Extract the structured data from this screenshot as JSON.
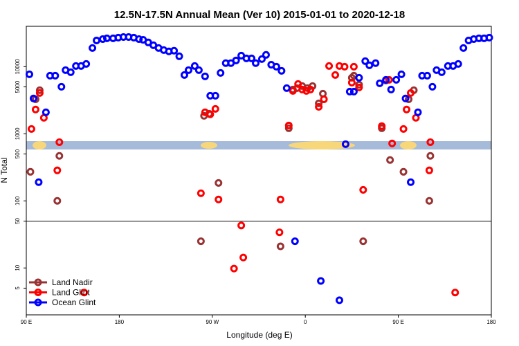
{
  "chart_data": {
    "type": "scatter",
    "title": "12.5N-17.5N Annual Mean (Ver 10)   2015-01-01 to 2020-12-18",
    "x_label": "Longitude (deg E)",
    "y_label": "N Total",
    "log_y": true,
    "legend": "bottom-left",
    "reference_line": 50,
    "xlim": [
      90,
      540
    ],
    "xticks": [
      {
        "value": 90,
        "label": "90 E"
      },
      {
        "value": 180,
        "label": "180"
      },
      {
        "value": 270,
        "label": "90 W"
      },
      {
        "value": 360,
        "label": "0"
      },
      {
        "value": 450,
        "label": "90 E"
      },
      {
        "value": 540,
        "label": "180"
      }
    ],
    "ylim": [
      2,
      40000
    ],
    "yticks": [
      5,
      10,
      50,
      100,
      500,
      1000,
      5000,
      10000
    ],
    "series": [
      {
        "name": "Land Nadir",
        "color": "#993333",
        "x": [
          94,
          99,
          103,
          122,
          120,
          262,
          267,
          276,
          259,
          336,
          348,
          352,
          357,
          362,
          367,
          373,
          377,
          405,
          407,
          412,
          416,
          434,
          438,
          442,
          455,
          460,
          465,
          481,
          480,
          344
        ],
        "values": [
          271,
          3270,
          4460,
          468,
          100,
          1850,
          1990,
          185,
          25,
          21,
          4570,
          4790,
          5140,
          4790,
          5140,
          2840,
          3960,
          6840,
          7350,
          5400,
          25,
          1210,
          6220,
          406,
          271,
          3270,
          4460,
          468,
          100,
          1210
        ]
      },
      {
        "name": "Land Glint",
        "color": "#ff0000",
        "x": [
          95,
          99,
          103,
          107,
          122,
          120,
          146,
          259,
          263,
          268,
          273,
          276,
          298,
          291,
          300,
          335,
          336,
          344,
          348,
          353,
          357,
          361,
          365,
          373,
          378,
          383,
          389,
          393,
          398,
          405,
          407,
          412,
          416,
          434,
          441,
          444,
          455,
          458,
          462,
          467,
          481,
          480,
          505
        ],
        "values": [
          1180,
          2300,
          4060,
          1730,
          750,
          285,
          4.3,
          130,
          2090,
          1950,
          2350,
          105,
          43,
          9.8,
          14.3,
          34,
          105,
          1330,
          4360,
          5520,
          4570,
          4360,
          4570,
          2520,
          3270,
          10240,
          7520,
          10240,
          10000,
          5790,
          10000,
          4910,
          146,
          1300,
          6370,
          718,
          1180,
          2300,
          4060,
          1730,
          750,
          285,
          4.3
        ]
      },
      {
        "name": "Ocean Glint",
        "color": "#0000ff",
        "x": [
          93,
          97,
          102,
          109,
          113,
          118,
          124,
          128,
          133,
          138,
          143,
          148,
          154,
          158,
          164,
          168,
          174,
          179,
          184,
          189,
          194,
          199,
          203,
          208,
          213,
          218,
          223,
          228,
          233,
          238,
          243,
          247,
          253,
          257,
          263,
          268,
          273,
          278,
          283,
          288,
          293,
          298,
          303,
          308,
          312,
          318,
          322,
          327,
          332,
          337,
          342,
          350,
          375,
          393,
          399,
          403,
          407,
          412,
          418,
          422,
          428,
          432,
          438,
          443,
          448,
          453,
          457,
          462,
          469,
          473,
          478,
          483,
          487,
          492,
          498,
          503,
          508,
          513,
          518,
          523,
          528,
          533,
          538
        ],
        "values": [
          7700,
          3360,
          190,
          2090,
          7350,
          7350,
          5020,
          8880,
          8270,
          10240,
          10240,
          11000,
          19000,
          24600,
          25800,
          26500,
          26500,
          27100,
          27700,
          27700,
          27100,
          25800,
          25200,
          23000,
          20900,
          19000,
          17700,
          16900,
          17300,
          14300,
          7520,
          8880,
          10240,
          8880,
          7180,
          3690,
          3690,
          8080,
          11300,
          11300,
          12400,
          14600,
          13300,
          13300,
          11300,
          13000,
          15000,
          10700,
          10000,
          8670,
          4790,
          25,
          6.4,
          3.3,
          700,
          4250,
          4250,
          6840,
          12100,
          10500,
          11300,
          5660,
          6370,
          4570,
          6370,
          7700,
          3360,
          190,
          2090,
          7350,
          7350,
          5020,
          8880,
          8270,
          10240,
          10240,
          11000,
          19000,
          24600,
          25800,
          26500,
          26500,
          27100
        ]
      }
    ]
  }
}
